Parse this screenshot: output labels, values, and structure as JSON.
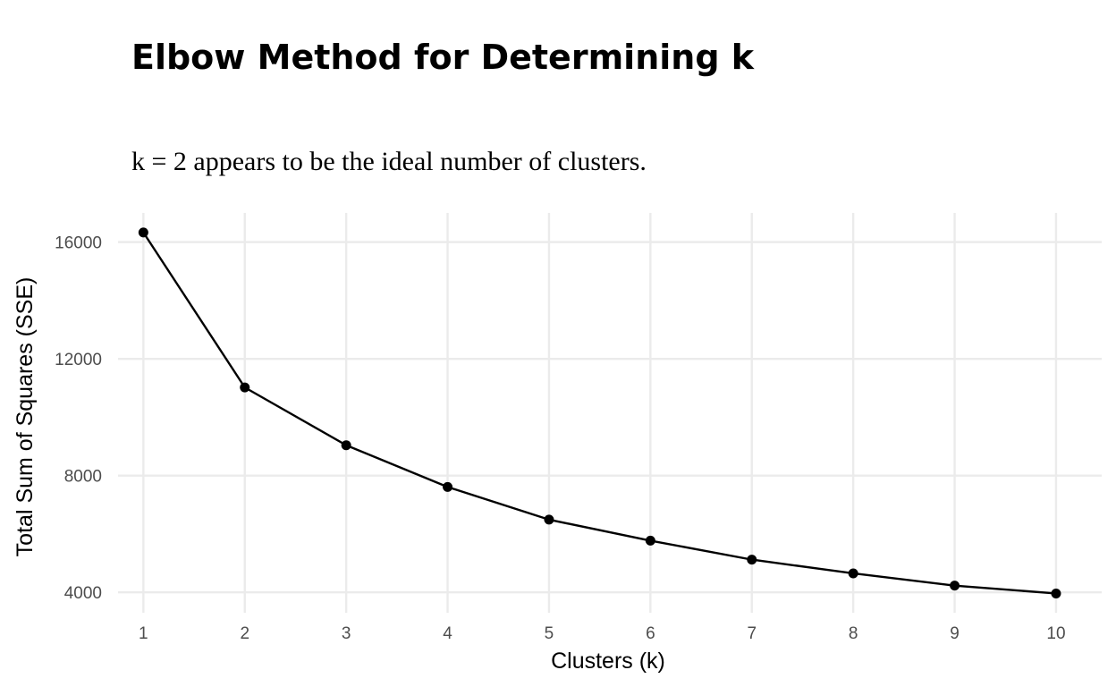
{
  "chart_data": {
    "type": "line",
    "title": "Elbow Method for Determining k",
    "subtitle": "k = 2 appears to be the ideal number of clusters.",
    "xlabel": "Clusters (k)",
    "ylabel": "Total Sum of Squares (SSE)",
    "x": [
      1,
      2,
      3,
      4,
      5,
      6,
      7,
      8,
      9,
      10
    ],
    "y": [
      16330,
      11020,
      9040,
      7610,
      6490,
      5770,
      5120,
      4650,
      4230,
      3960
    ],
    "xticks": [
      "1",
      "2",
      "3",
      "4",
      "5",
      "6",
      "7",
      "8",
      "9",
      "10"
    ],
    "yticks": [
      "4000",
      "8000",
      "12000",
      "16000"
    ],
    "xlim": [
      0.75,
      10.45
    ],
    "ylim": [
      3300,
      17000
    ],
    "grid": true,
    "line_color": "#000000",
    "grid_color": "#ebebeb"
  }
}
